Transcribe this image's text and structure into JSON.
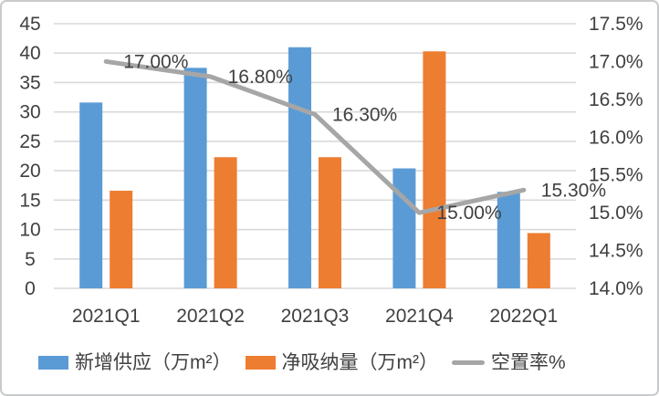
{
  "chart_data": {
    "type": "combo-bar-line",
    "categories": [
      "2021Q1",
      "2021Q2",
      "2021Q3",
      "2021Q4",
      "2022Q1"
    ],
    "series": [
      {
        "name": "新增供应（万m²）",
        "type": "bar",
        "axis": "left",
        "color": "#5B9BD5",
        "values": [
          31.6,
          37.5,
          41.0,
          20.4,
          16.4
        ]
      },
      {
        "name": "净吸纳量（万m²）",
        "type": "bar",
        "axis": "left",
        "color": "#ED7D31",
        "values": [
          16.6,
          22.3,
          22.3,
          40.3,
          9.4
        ]
      },
      {
        "name": "空置率%",
        "type": "line",
        "axis": "right",
        "color": "#A6A6A6",
        "values": [
          17.0,
          16.8,
          16.3,
          15.0,
          15.3
        ],
        "data_labels": [
          "17.00%",
          "16.80%",
          "16.30%",
          "15.00%",
          "15.30%"
        ]
      }
    ],
    "left_axis": {
      "min": 0,
      "max": 45,
      "step": 5,
      "tick_labels": [
        "0",
        "5",
        "10",
        "15",
        "20",
        "25",
        "30",
        "35",
        "40",
        "45"
      ]
    },
    "right_axis": {
      "min": 14.0,
      "max": 17.5,
      "step": 0.5,
      "tick_labels": [
        "14.0%",
        "14.5%",
        "15.0%",
        "15.5%",
        "16.0%",
        "16.5%",
        "17.0%",
        "17.5%"
      ]
    },
    "grid": true,
    "legend_position": "bottom"
  },
  "colors": {
    "gridline": "#D9D9D9",
    "tick_text": "#404040",
    "background": "#FFFFFF",
    "frame_border": "#C9CACB"
  }
}
